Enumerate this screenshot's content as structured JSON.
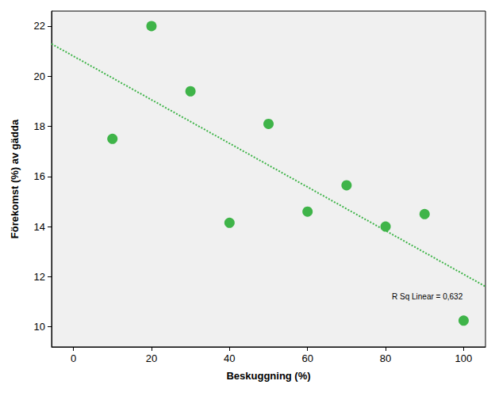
{
  "chart_data": {
    "type": "scatter",
    "x_label": "Beskuggning (%)",
    "y_label": "Förekomst (%) av gädda",
    "annotation": "R Sq Linear = 0,632",
    "xlim": [
      -5.6,
      105.6
    ],
    "xticks": [
      0,
      20,
      40,
      60,
      80,
      100
    ],
    "ylim": [
      9.2,
      22.6
    ],
    "yticks": [
      10,
      12,
      14,
      16,
      18,
      20,
      22
    ],
    "grid": false,
    "series": [
      {
        "type": "scatter",
        "color": "#3fb449",
        "marker": "circle",
        "x": [
          10,
          20,
          30,
          40,
          50,
          60,
          70,
          80,
          90,
          100
        ],
        "values": [
          17.5,
          22.0,
          19.4,
          14.15,
          18.1,
          14.6,
          15.65,
          14.0,
          14.5,
          10.25
        ]
      },
      {
        "type": "line",
        "color": "#3fb449",
        "line_style": "dotted",
        "x": [
          -5.6,
          105.6
        ],
        "values": [
          21.29,
          11.61
        ]
      }
    ]
  }
}
